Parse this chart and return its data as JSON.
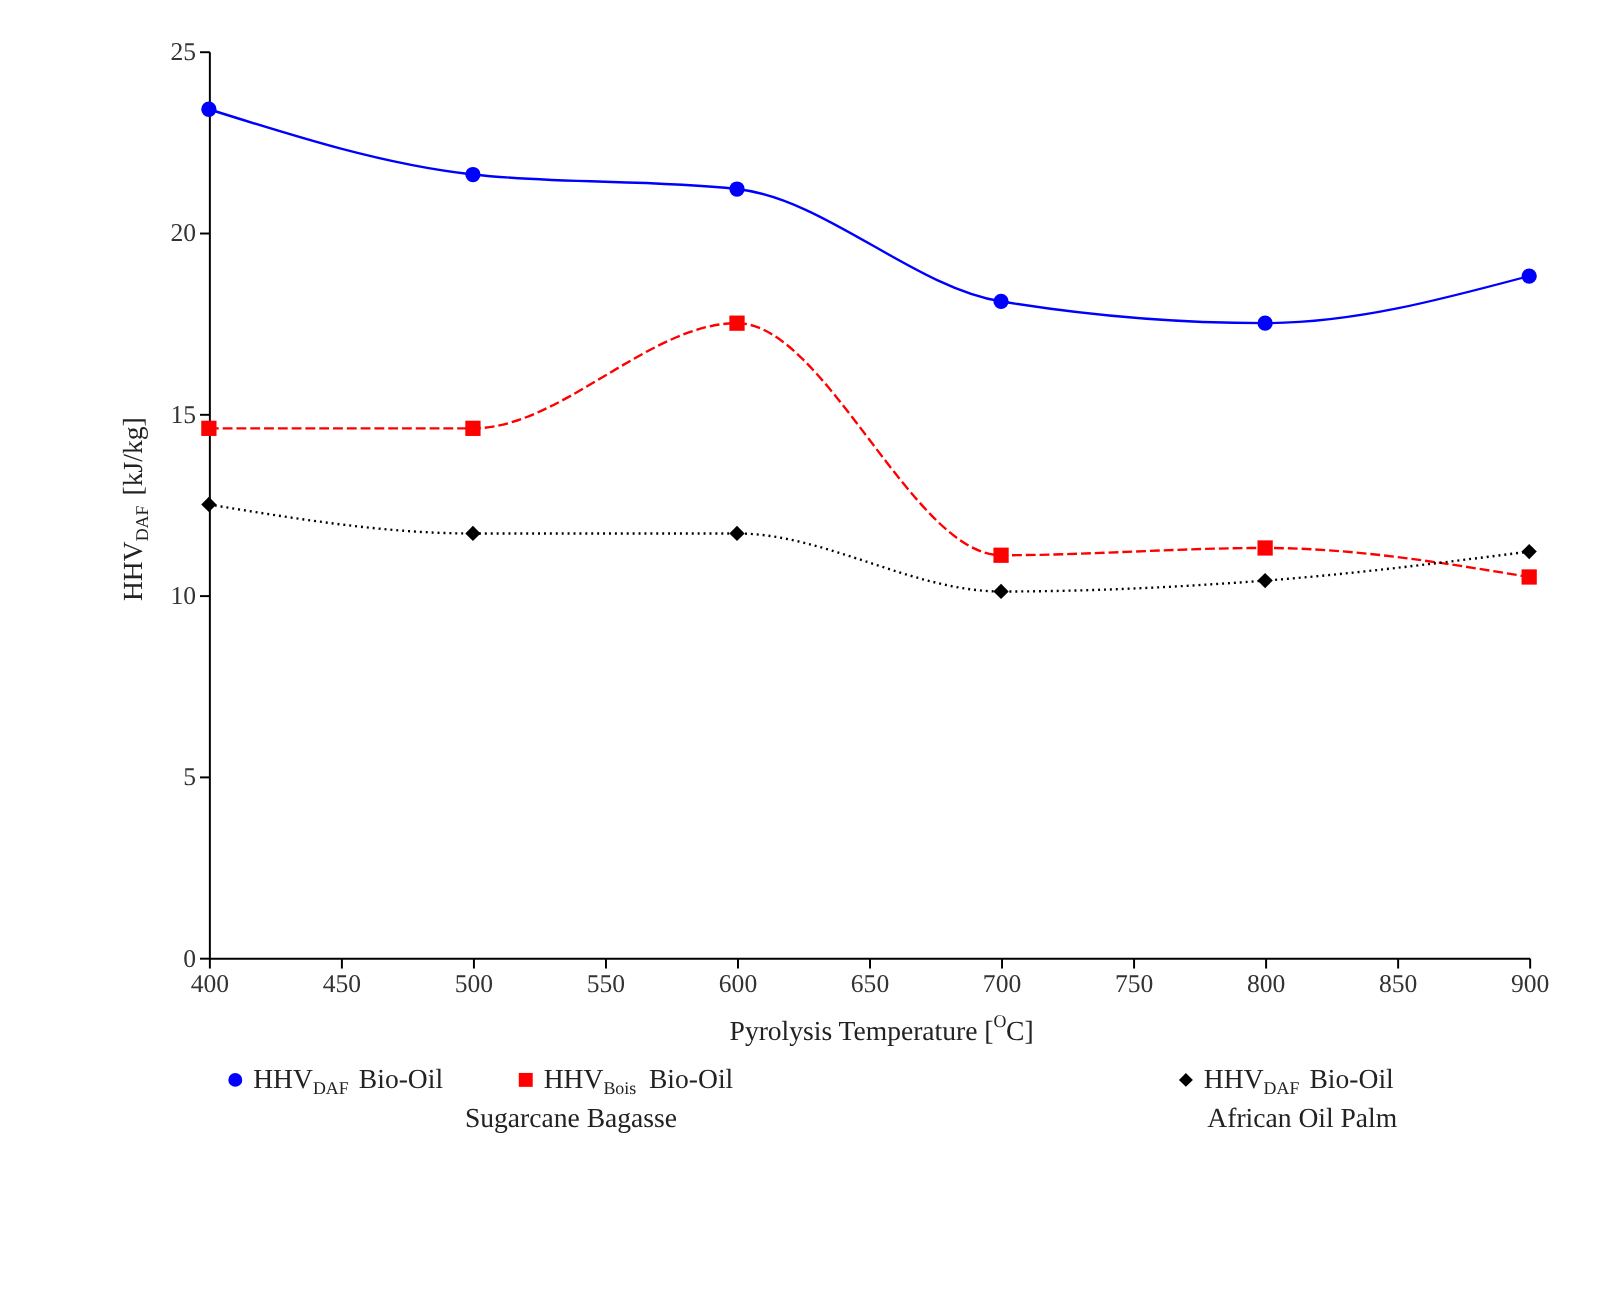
{
  "chart_data": {
    "type": "line",
    "xlabel": "Pyrolysis Temperature [$^{O}$C]",
    "ylabel": "HHV$_{DAF}$ [kJ/kg]",
    "x": [
      400,
      500,
      600,
      700,
      800,
      900
    ],
    "series": [
      {
        "name": "HHV$_{DAF}$ Bio-Oil",
        "color": "#0000ff",
        "marker": "circle",
        "line_style": "solid",
        "values": [
          23.4,
          21.6,
          21.2,
          18.1,
          17.5,
          18.8
        ]
      },
      {
        "name": "HHV$_{Bois}$ Bio-Oil",
        "color": "#ff0000",
        "marker": "square",
        "line_style": "dashed",
        "values": [
          14.6,
          14.6,
          17.5,
          11.1,
          11.3,
          10.5
        ]
      },
      {
        "name": "HHV$_{DAF}$ Bio-Oil",
        "color": "#000000",
        "marker": "diamond",
        "line_style": "dotted",
        "values": [
          12.5,
          11.7,
          11.7,
          10.1,
          10.4,
          11.2
        ]
      }
    ],
    "annotations": [
      "Sugarcane Bagasse",
      "African Oil Palm"
    ],
    "xlim": [
      400,
      900
    ],
    "xticks": [
      400,
      450,
      500,
      550,
      600,
      650,
      700,
      750,
      800,
      850,
      900
    ],
    "ylim": [
      0,
      25
    ],
    "yticks": [
      0,
      5,
      10,
      15,
      20,
      25
    ],
    "grid": false,
    "legend": "bottom"
  }
}
